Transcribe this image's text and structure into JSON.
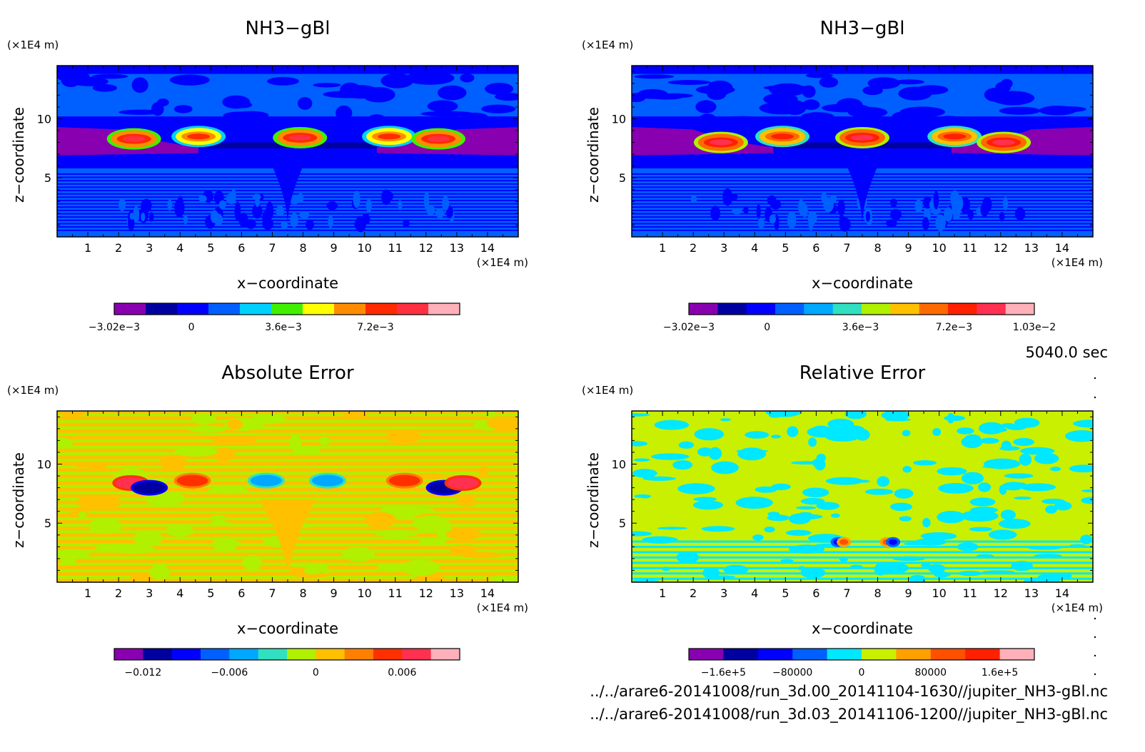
{
  "timestamp": "5040.0 sec",
  "files": [
    "../../arare6-20141008/run_3d.00_20141104-1630//jupiter_NH3-gBl.nc",
    "../../arare6-20141008/run_3d.03_20141106-1200//jupiter_NH3-gBl.nc"
  ],
  "chart_data": [
    {
      "type": "heatmap",
      "title": "NH3−gBl",
      "xlabel": "x−coordinate",
      "ylabel": "z−coordinate",
      "x_unit": "(×1E4 m)",
      "y_unit": "(×1E4 m)",
      "xlim": [
        0,
        15
      ],
      "ylim": [
        0,
        14.5
      ],
      "xticks": [
        1,
        2,
        3,
        4,
        5,
        6,
        7,
        8,
        9,
        10,
        11,
        12,
        13,
        14
      ],
      "yticks": [
        5,
        10
      ],
      "colorbar": {
        "colors": [
          "#8800b0",
          "#0000a0",
          "#0000ff",
          "#0060ff",
          "#00d0ff",
          "#40f000",
          "#ffff00",
          "#ff8c00",
          "#ff2a00",
          "#ff3040",
          "#ffb0b8"
        ],
        "range": [
          -0.00302,
          0.0105
        ],
        "ticks": [
          {
            "value": -0.00302,
            "label": "−3.02e−3"
          },
          {
            "value": 0,
            "label": "0"
          },
          {
            "value": 0.0036,
            "label": "3.6e−3"
          },
          {
            "value": 0.0072,
            "label": "7.2e−3"
          }
        ]
      },
      "features": [
        {
          "x": 2.5,
          "z": 8.3,
          "level": 9
        },
        {
          "x": 4.6,
          "z": 8.5,
          "level": 8
        },
        {
          "x": 7.9,
          "z": 8.4,
          "level": 9
        },
        {
          "x": 10.8,
          "z": 8.5,
          "level": 8
        },
        {
          "x": 12.4,
          "z": 8.3,
          "level": 9
        }
      ]
    },
    {
      "type": "heatmap",
      "title": "NH3−gBl",
      "xlabel": "x−coordinate",
      "ylabel": "z−coordinate",
      "x_unit": "(×1E4 m)",
      "y_unit": "(×1E4 m)",
      "xlim": [
        0,
        15
      ],
      "ylim": [
        0,
        14.5
      ],
      "xticks": [
        1,
        2,
        3,
        4,
        5,
        6,
        7,
        8,
        9,
        10,
        11,
        12,
        13,
        14
      ],
      "yticks": [
        5,
        10
      ],
      "colorbar": {
        "colors": [
          "#8800b0",
          "#0000a0",
          "#0000ff",
          "#0060ff",
          "#00a8ff",
          "#30e0c0",
          "#b0f000",
          "#ffc000",
          "#ff6a00",
          "#ff2000",
          "#ff3050",
          "#ffb0b8"
        ],
        "range": [
          -0.00302,
          0.0103
        ],
        "ticks": [
          {
            "value": -0.00302,
            "label": "−3.02e−3"
          },
          {
            "value": 0,
            "label": "0"
          },
          {
            "value": 0.0036,
            "label": "3.6e−3"
          },
          {
            "value": 0.0072,
            "label": "7.2e−3"
          },
          {
            "value": 0.0103,
            "label": "1.03e−2"
          }
        ]
      },
      "features": [
        {
          "x": 2.9,
          "z": 8.0,
          "level": 10
        },
        {
          "x": 4.9,
          "z": 8.5,
          "level": 9
        },
        {
          "x": 7.5,
          "z": 8.4,
          "level": 10
        },
        {
          "x": 10.5,
          "z": 8.5,
          "level": 9
        },
        {
          "x": 12.1,
          "z": 8.0,
          "level": 10
        }
      ]
    },
    {
      "type": "heatmap",
      "title": "Absolute Error",
      "xlabel": "x−coordinate",
      "ylabel": "z−coordinate",
      "x_unit": "(×1E4 m)",
      "y_unit": "(×1E4 m)",
      "xlim": [
        0,
        15
      ],
      "ylim": [
        0,
        14.5
      ],
      "xticks": [
        1,
        2,
        3,
        4,
        5,
        6,
        7,
        8,
        9,
        10,
        11,
        12,
        13,
        14
      ],
      "yticks": [
        5,
        10
      ],
      "colorbar": {
        "colors": [
          "#8800b0",
          "#0000a0",
          "#0000ff",
          "#0060ff",
          "#00a8ff",
          "#30e0c0",
          "#b0f000",
          "#ffc000",
          "#ff8000",
          "#ff3000",
          "#ff3050",
          "#ffb0b8"
        ],
        "range": [
          -0.014,
          0.01
        ],
        "ticks": [
          {
            "value": -0.012,
            "label": "−0.012"
          },
          {
            "value": -0.006,
            "label": "−0.006"
          },
          {
            "value": 0,
            "label": "0"
          },
          {
            "value": 0.006,
            "label": "0.006"
          }
        ]
      },
      "features": [
        {
          "x": 2.4,
          "z": 8.4,
          "level": 10
        },
        {
          "x": 3.0,
          "z": 8.0,
          "level": 1
        },
        {
          "x": 4.4,
          "z": 8.6,
          "level": 9
        },
        {
          "x": 6.8,
          "z": 8.6,
          "level": 4
        },
        {
          "x": 8.8,
          "z": 8.6,
          "level": 4
        },
        {
          "x": 11.3,
          "z": 8.6,
          "level": 9
        },
        {
          "x": 12.6,
          "z": 8.0,
          "level": 1
        },
        {
          "x": 13.2,
          "z": 8.4,
          "level": 10
        }
      ]
    },
    {
      "type": "heatmap",
      "title": "Relative Error",
      "xlabel": "x−coordinate",
      "ylabel": "z−coordinate",
      "x_unit": "(×1E4 m)",
      "y_unit": "(×1E4 m)",
      "xlim": [
        0,
        15
      ],
      "ylim": [
        0,
        14.5
      ],
      "xticks": [
        1,
        2,
        3,
        4,
        5,
        6,
        7,
        8,
        9,
        10,
        11,
        12,
        13,
        14
      ],
      "yticks": [
        5,
        10
      ],
      "colorbar": {
        "colors": [
          "#8800b0",
          "#0000a0",
          "#0000ff",
          "#0060ff",
          "#00e8ff",
          "#c8f000",
          "#ffa000",
          "#ff5000",
          "#ff2000",
          "#ffb0b8"
        ],
        "range": [
          -200000,
          200000
        ],
        "ticks": [
          {
            "value": -160000,
            "label": "−1.6e+5"
          },
          {
            "value": -80000,
            "label": "−80000"
          },
          {
            "value": 0,
            "label": "0"
          },
          {
            "value": 80000,
            "label": "80000"
          },
          {
            "value": 160000,
            "label": "1.6e+5"
          }
        ]
      },
      "features": [
        {
          "x": 6.7,
          "z": 3.4,
          "level": 2
        },
        {
          "x": 6.9,
          "z": 3.4,
          "level": 7
        },
        {
          "x": 8.3,
          "z": 3.4,
          "level": 7
        },
        {
          "x": 8.5,
          "z": 3.4,
          "level": 2
        }
      ]
    }
  ]
}
